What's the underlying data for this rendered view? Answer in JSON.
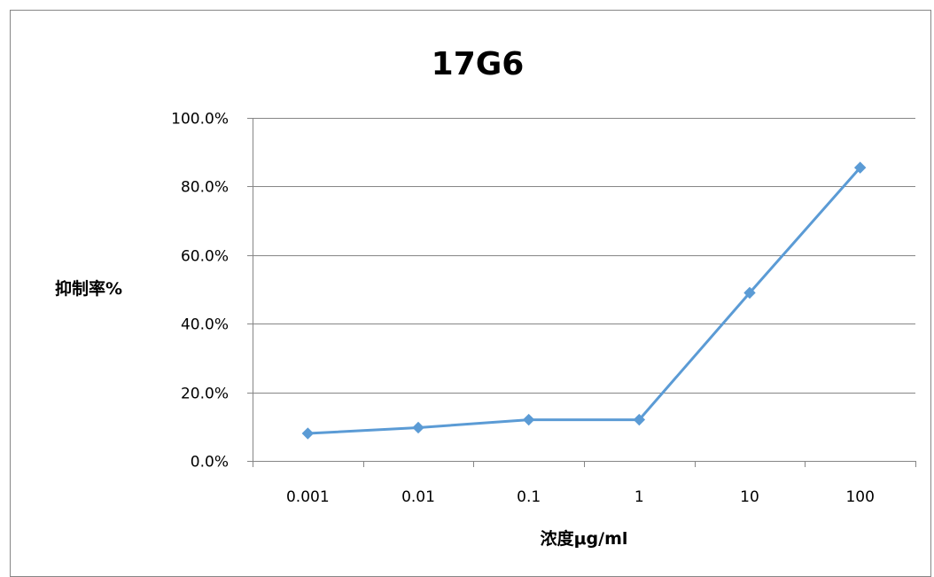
{
  "chart_data": {
    "type": "line",
    "title": "17G6",
    "xlabel": "浓度μg/ml",
    "ylabel": "抑制率%",
    "categories": [
      "0.001",
      "0.01",
      "0.1",
      "1",
      "10",
      "100"
    ],
    "series": [
      {
        "values": [
          0.08,
          0.097,
          0.12,
          0.12,
          0.49,
          0.855
        ],
        "color": "#5b9bd5"
      }
    ],
    "ylim": [
      0,
      1
    ],
    "yticks": [
      "0.0%",
      "20.0%",
      "40.0%",
      "60.0%",
      "80.0%",
      "100.0%"
    ],
    "grid": true,
    "legend": "none",
    "marker": "diamond"
  }
}
